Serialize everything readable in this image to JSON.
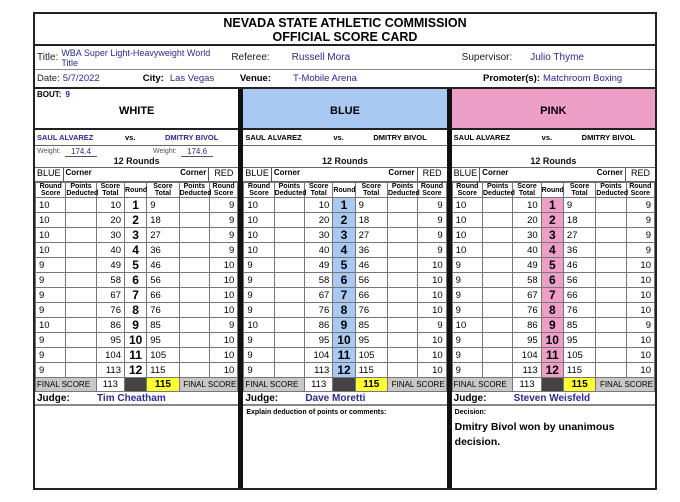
{
  "header": {
    "line1": "NEVADA STATE ATHLETIC COMMISSION",
    "line2": "OFFICIAL SCORE CARD"
  },
  "info": {
    "title_label": "Title:",
    "title": "WBA Super Light-Heavyweight World Title",
    "referee_label": "Referee:",
    "referee": "Russell Mora",
    "supervisor_label": "Supervisor:",
    "supervisor": "Julio Thyme",
    "date_label": "Date:",
    "date": "5/7/2022",
    "city_label": "City:",
    "city": "Las Vegas",
    "venue_label": "Venue:",
    "venue": "T-Mobile Arena",
    "promoter_label": "Promoter(s):",
    "promoter": "Matchroom Boxing",
    "bout_label": "BOUT:",
    "bout": "9"
  },
  "colors": {
    "white": "#ffffff",
    "blue": "#a9c9f2",
    "pink": "#ee9fc8",
    "highlight": "#ffff33",
    "grey": "#c8c8c8"
  },
  "labels": {
    "vs": "vs.",
    "weight": "Weight:",
    "rounds": "12 Rounds",
    "blue_corner": "BLUE",
    "corner": "Corner",
    "red_corner": "RED",
    "final_score": "FINAL SCORE",
    "judge": "Judge:",
    "cols": [
      "Round Score",
      "Points Deducted",
      "Score Total",
      "Round",
      "Score Total",
      "Points Deducted",
      "Round Score"
    ]
  },
  "fighters": {
    "blue": "SAUL ALVAREZ",
    "red": "DMITRY BIVOL",
    "blue_weight": "174.4",
    "red_weight": "174.6"
  },
  "panels": [
    {
      "color_name": "WHITE",
      "color_key": "white",
      "judge": "Tim Cheatham",
      "show_weight": true,
      "comment_label": "",
      "comment": ""
    },
    {
      "color_name": "BLUE",
      "color_key": "blue",
      "judge": "Dave Moretti",
      "show_weight": false,
      "comment_label": "Explain deduction of points or comments:",
      "comment": ""
    },
    {
      "color_name": "PINK",
      "color_key": "pink",
      "judge": "Steven Weisfeld",
      "show_weight": false,
      "comment_label": "Decision:",
      "comment": "Dmitry Bivol won by unanimous decision."
    }
  ],
  "rounds": [
    {
      "r": 1,
      "bs": 10,
      "bt": 10,
      "rt": 9,
      "rs": 9
    },
    {
      "r": 2,
      "bs": 10,
      "bt": 20,
      "rt": 18,
      "rs": 9
    },
    {
      "r": 3,
      "bs": 10,
      "bt": 30,
      "rt": 27,
      "rs": 9
    },
    {
      "r": 4,
      "bs": 10,
      "bt": 40,
      "rt": 36,
      "rs": 9
    },
    {
      "r": 5,
      "bs": 9,
      "bt": 49,
      "rt": 46,
      "rs": 10
    },
    {
      "r": 6,
      "bs": 9,
      "bt": 58,
      "rt": 56,
      "rs": 10
    },
    {
      "r": 7,
      "bs": 9,
      "bt": 67,
      "rt": 66,
      "rs": 10
    },
    {
      "r": 8,
      "bs": 9,
      "bt": 76,
      "rt": 76,
      "rs": 10
    },
    {
      "r": 9,
      "bs": 10,
      "bt": 86,
      "rt": 85,
      "rs": 9
    },
    {
      "r": 10,
      "bs": 9,
      "bt": 95,
      "rt": 95,
      "rs": 10
    },
    {
      "r": 11,
      "bs": 9,
      "bt": 104,
      "rt": 105,
      "rs": 10
    },
    {
      "r": 12,
      "bs": 9,
      "bt": 113,
      "rt": 115,
      "rs": 10
    }
  ],
  "final": {
    "blue": "113",
    "red": "115"
  }
}
